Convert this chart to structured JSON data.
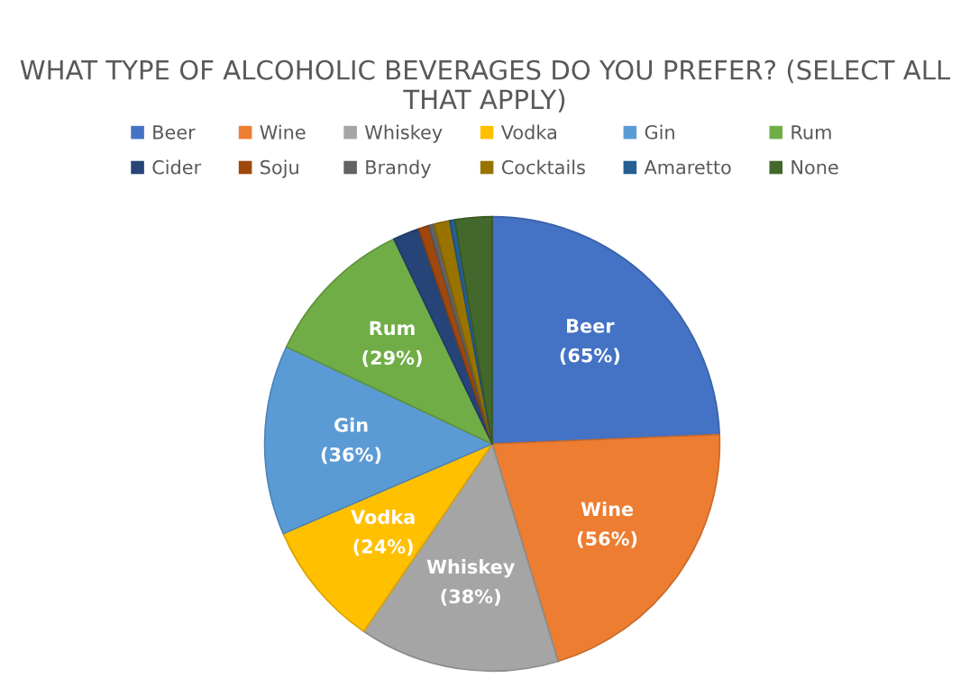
{
  "chart_data": {
    "type": "pie",
    "title": "WHAT TYPE OF ALCOHOLIC BEVERAGES DO YOU PREFER? (SELECT ALL THAT APPLY)",
    "categories": [
      "Beer",
      "Wine",
      "Whiskey",
      "Vodka",
      "Gin",
      "Rum",
      "Cider",
      "Soju",
      "Brandy",
      "Cocktails",
      "Amaretto",
      "None"
    ],
    "values": [
      65,
      56,
      38,
      24,
      36,
      29,
      5,
      2,
      1,
      3,
      1,
      7
    ],
    "value_labels": [
      "(65%)",
      "(56%)",
      "(38%)",
      "(24%)",
      "(36%)",
      "(29%)",
      null,
      null,
      null,
      null,
      null,
      null
    ],
    "colors": [
      "#4472c4",
      "#ed7d31",
      "#a5a5a5",
      "#ffc000",
      "#5b9bd5",
      "#70ad47",
      "#264478",
      "#9e480e",
      "#636363",
      "#997300",
      "#255e91",
      "#43682b"
    ],
    "legend": "top"
  }
}
